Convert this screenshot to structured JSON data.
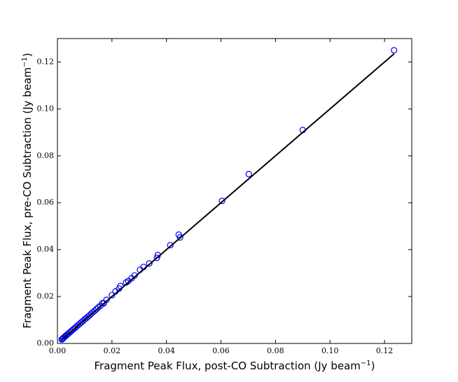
{
  "chart_data": {
    "type": "scatter",
    "xlabel": {
      "text": "Fragment Peak Flux, post-CO Subtraction (Jy beam",
      "sup": "−1",
      "end": ")"
    },
    "ylabel": {
      "text": "Fragment Peak Flux, pre-CO Subtraction (Jy beam",
      "sup": "−1",
      "end": ")"
    },
    "xlim": [
      0,
      0.13
    ],
    "ylim": [
      0,
      0.13
    ],
    "xticks": [
      {
        "value": 0,
        "label": "0.00"
      },
      {
        "value": 0.02,
        "label": "0.02"
      },
      {
        "value": 0.04,
        "label": "0.04"
      },
      {
        "value": 0.06,
        "label": "0.06"
      },
      {
        "value": 0.08,
        "label": "0.08"
      },
      {
        "value": 0.1,
        "label": "0.10"
      },
      {
        "value": 0.12,
        "label": "0.12"
      }
    ],
    "yticks": [
      {
        "value": 0,
        "label": "0.00"
      },
      {
        "value": 0.02,
        "label": "0.02"
      },
      {
        "value": 0.04,
        "label": "0.04"
      },
      {
        "value": 0.06,
        "label": "0.06"
      },
      {
        "value": 0.08,
        "label": "0.08"
      },
      {
        "value": 0.1,
        "label": "0.10"
      },
      {
        "value": 0.12,
        "label": "0.12"
      }
    ],
    "series": [
      {
        "color": "#0000ff",
        "x": [
          0.1235,
          0.09,
          0.0702,
          0.0604,
          0.0445,
          0.045,
          0.0414,
          0.0368,
          0.0365,
          0.0337,
          0.0316,
          0.0303,
          0.0283,
          0.0272,
          0.026,
          0.0252,
          0.0231,
          0.0226,
          0.0213,
          0.02,
          0.018,
          0.017,
          0.0165,
          0.0158,
          0.015,
          0.0143,
          0.0136,
          0.013,
          0.0124,
          0.0118,
          0.0112,
          0.0106,
          0.01,
          0.0094,
          0.0088,
          0.0082,
          0.0076,
          0.007,
          0.0065,
          0.006,
          0.0055,
          0.005,
          0.0045,
          0.004,
          0.0036,
          0.0032,
          0.0028,
          0.0024,
          0.0021,
          0.0018,
          0.0016
        ],
        "values": [
          0.125,
          0.091,
          0.0722,
          0.0608,
          0.0464,
          0.0452,
          0.0419,
          0.0377,
          0.0365,
          0.0341,
          0.0326,
          0.0314,
          0.029,
          0.0278,
          0.0266,
          0.026,
          0.0245,
          0.0234,
          0.0222,
          0.0206,
          0.0186,
          0.0171,
          0.0172,
          0.0161,
          0.0154,
          0.0146,
          0.0139,
          0.0133,
          0.0127,
          0.012,
          0.0114,
          0.0108,
          0.0103,
          0.0096,
          0.009,
          0.0084,
          0.0078,
          0.0072,
          0.0067,
          0.0062,
          0.0057,
          0.0052,
          0.0047,
          0.0042,
          0.0038,
          0.0034,
          0.003,
          0.0026,
          0.0022,
          0.0019,
          0.0017
        ]
      }
    ],
    "fit_line": {
      "color": "#000000",
      "x": [
        0.0015,
        0.1235
      ],
      "values": [
        0.0015,
        0.1235
      ]
    }
  }
}
